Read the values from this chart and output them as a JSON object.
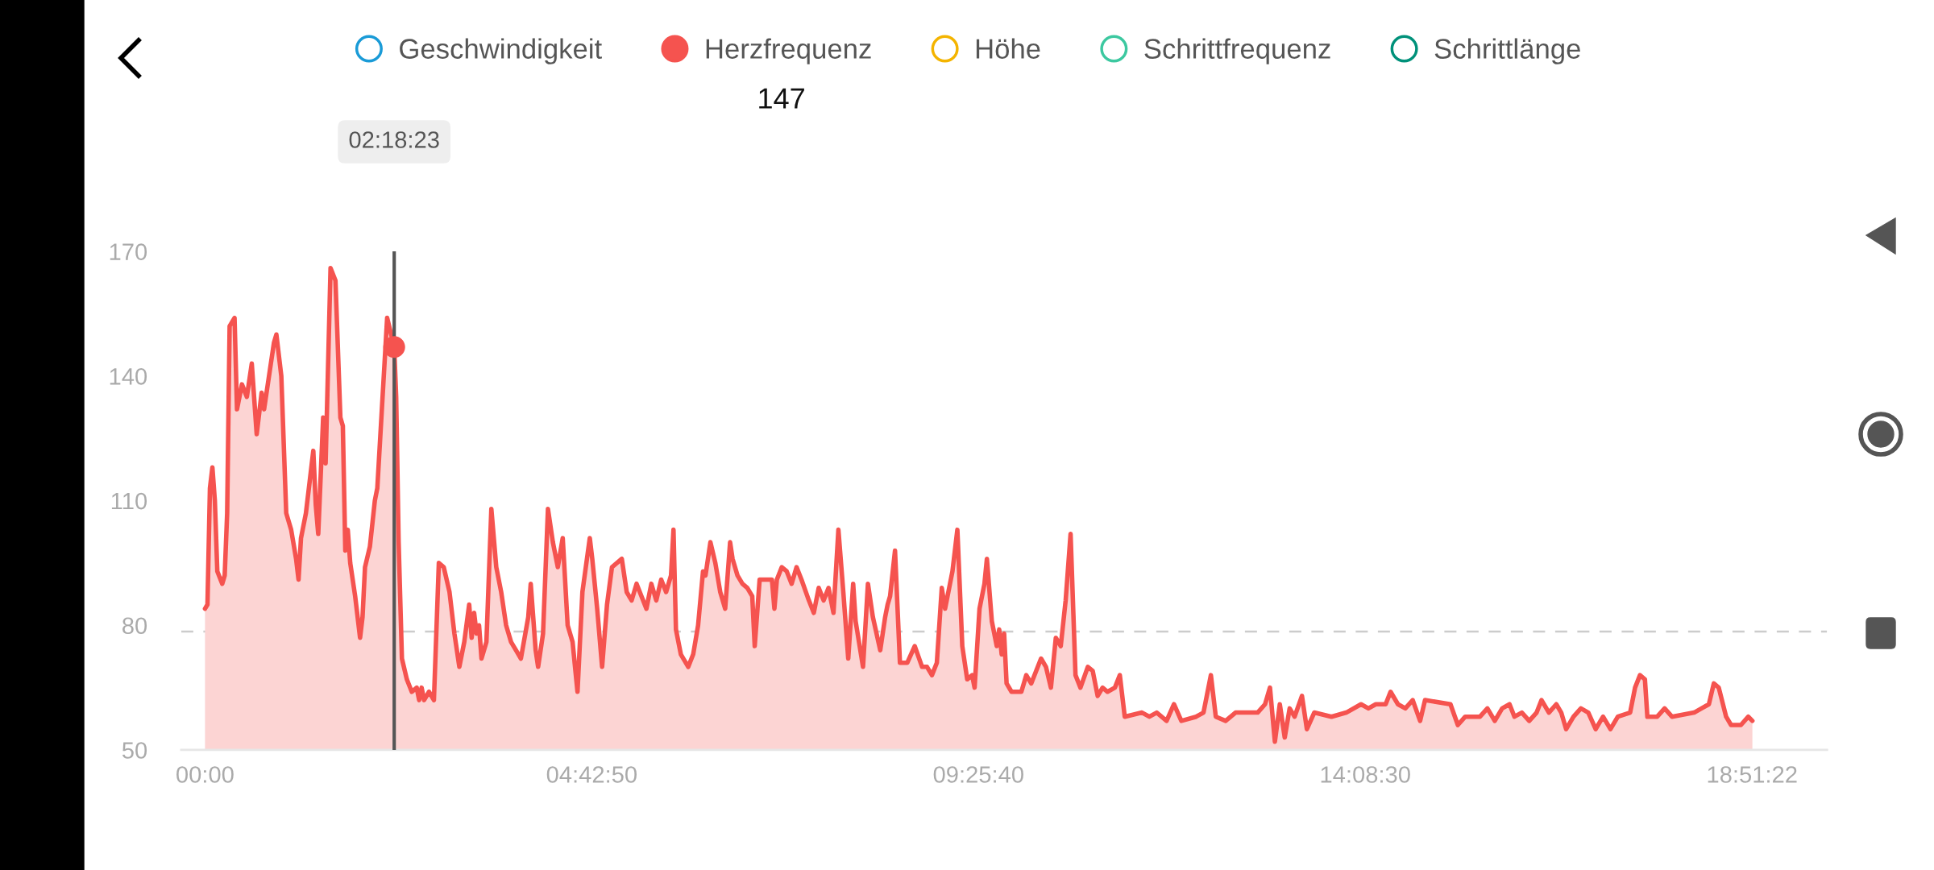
{
  "chart_data": {
    "type": "area",
    "series": [
      {
        "name": "Geschwindigkeit",
        "color": "#1a9bd7"
      },
      {
        "name": "Herzfrequenz",
        "color": "#f5534f",
        "x": [
          0.0,
          0.03,
          0.06,
          0.09,
          0.12,
          0.15,
          0.21,
          0.24,
          0.27,
          0.3,
          0.36,
          0.39,
          0.45,
          0.51,
          0.57,
          0.63,
          0.69,
          0.72,
          0.78,
          0.84,
          0.87,
          0.93,
          0.99,
          1.05,
          1.11,
          1.14,
          1.17,
          1.23,
          1.32,
          1.35,
          1.38,
          1.44,
          1.47,
          1.53,
          1.59,
          1.65,
          1.68,
          1.71,
          1.74,
          1.77,
          1.83,
          1.89,
          1.92,
          1.95,
          2.01,
          2.07,
          2.1,
          2.22,
          2.306,
          2.33,
          2.36,
          2.4,
          2.46,
          2.52,
          2.58,
          2.61,
          2.64,
          2.67,
          2.73,
          2.79,
          2.85,
          2.91,
          2.98,
          3.04,
          3.1,
          3.16,
          3.22,
          3.25,
          3.28,
          3.31,
          3.34,
          3.37,
          3.43,
          3.49,
          3.55,
          3.61,
          3.67,
          3.73,
          3.79,
          3.85,
          3.94,
          3.97,
          4.03,
          4.06,
          4.12,
          4.18,
          4.24,
          4.3,
          4.36,
          4.42,
          4.48,
          4.54,
          4.6,
          4.69,
          4.72,
          4.78,
          4.84,
          4.9,
          4.96,
          5.02,
          5.08,
          5.14,
          5.2,
          5.26,
          5.32,
          5.38,
          5.44,
          5.5,
          5.56,
          5.62,
          5.68,
          5.71,
          5.74,
          5.8,
          5.89,
          5.95,
          6.01,
          6.07,
          6.1,
          6.16,
          6.22,
          6.28,
          6.34,
          6.4,
          6.43,
          6.49,
          6.55,
          6.61,
          6.67,
          6.7,
          6.76,
          6.91,
          6.94,
          6.97,
          7.03,
          7.09,
          7.15,
          7.21,
          7.27,
          7.36,
          7.42,
          7.48,
          7.54,
          7.6,
          7.66,
          7.72,
          7.78,
          7.84,
          7.9,
          7.93,
          8.02,
          8.08,
          8.14,
          8.23,
          8.29,
          8.32,
          8.35,
          8.41,
          8.47,
          8.56,
          8.65,
          8.74,
          8.8,
          8.86,
          8.92,
          8.98,
          9.02,
          9.08,
          9.11,
          9.17,
          9.23,
          9.29,
          9.35,
          9.38,
          9.44,
          9.5,
          9.53,
          9.59,
          9.65,
          9.68,
          9.71,
          9.74,
          9.77,
          9.83,
          9.95,
          10.01,
          10.07,
          10.13,
          10.19,
          10.25,
          10.31,
          10.37,
          10.43,
          10.49,
          10.55,
          10.61,
          10.67,
          10.76,
          10.82,
          10.88,
          10.94,
          11.0,
          11.09,
          11.15,
          11.21,
          11.42,
          11.51,
          11.6,
          11.72,
          11.81,
          11.9,
          12.08,
          12.17,
          12.26,
          12.32,
          12.44,
          12.56,
          12.83,
          12.92,
          12.98,
          13.04,
          13.1,
          13.16,
          13.22,
          13.28,
          13.37,
          13.43,
          13.52,
          13.73,
          13.91,
          14.09,
          14.18,
          14.27,
          14.39,
          14.45,
          14.54,
          14.63,
          14.72,
          14.81,
          14.87,
          15.18,
          15.27,
          15.36,
          15.54,
          15.63,
          15.72,
          15.81,
          15.9,
          15.96,
          16.05,
          16.14,
          16.23,
          16.29,
          16.38,
          16.47,
          16.53,
          16.59,
          16.68,
          16.77,
          16.86,
          16.95,
          17.04,
          17.13,
          17.22,
          17.37,
          17.43,
          17.49,
          17.55,
          17.58,
          17.7,
          17.79,
          17.88,
          18.15,
          18.24,
          18.33,
          18.39,
          18.45,
          18.54,
          18.6,
          18.72,
          18.81,
          18.86
        ],
        "values": [
          84,
          85,
          113,
          118,
          110,
          93,
          90,
          92,
          107,
          152,
          154,
          132,
          138,
          135,
          143,
          126,
          136,
          132,
          140,
          148,
          150,
          140,
          107,
          103,
          96,
          91,
          101,
          107,
          122,
          109,
          102,
          130,
          119,
          166,
          163,
          130,
          128,
          98,
          103,
          95,
          87,
          77,
          82,
          94,
          99,
          110,
          113,
          154,
          147,
          135,
          100,
          72,
          67,
          64,
          65,
          62,
          65,
          62,
          64,
          62,
          95,
          94,
          88,
          78,
          70,
          76,
          85,
          77,
          83,
          78,
          80,
          72,
          76,
          108,
          94,
          88,
          80,
          76,
          74,
          72,
          82,
          90,
          74,
          70,
          78,
          108,
          100,
          94,
          101,
          80,
          76,
          64,
          88,
          101,
          96,
          84,
          70,
          85,
          94,
          95,
          96,
          88,
          86,
          90,
          87,
          84,
          90,
          86,
          91,
          88,
          92,
          103,
          79,
          73,
          70,
          73,
          80,
          93,
          92,
          100,
          95,
          88,
          84,
          100,
          96,
          92,
          90,
          89,
          87,
          75,
          91,
          91,
          84,
          91,
          94,
          93,
          90,
          94,
          91,
          86,
          83,
          89,
          86,
          89,
          83,
          103,
          88,
          72,
          90,
          81,
          70,
          90,
          82,
          74,
          82,
          85,
          87,
          98,
          71,
          71,
          75,
          70,
          70,
          68,
          71,
          89,
          84,
          90,
          93,
          103,
          75,
          67,
          68,
          65,
          84,
          90,
          96,
          81,
          75,
          79,
          73,
          78,
          66,
          64,
          64,
          68,
          66,
          69,
          72,
          70,
          65,
          77,
          75,
          86,
          102,
          68,
          65,
          70,
          69,
          63,
          65,
          64,
          65,
          68,
          58,
          59,
          58,
          59,
          57,
          61,
          57,
          58,
          59,
          68,
          58,
          57,
          59,
          59,
          61,
          65,
          52,
          61,
          53,
          60,
          58,
          63,
          55,
          59,
          58,
          59,
          61,
          60,
          61,
          61,
          64,
          61,
          60,
          62,
          57,
          62,
          61,
          56,
          58,
          58,
          60,
          57,
          60,
          61,
          58,
          59,
          57,
          59,
          62,
          59,
          61,
          59,
          55,
          58,
          60,
          59,
          55,
          58,
          55,
          58,
          59,
          65,
          68,
          67,
          58,
          58,
          60,
          58,
          59,
          60,
          61,
          66,
          65,
          58,
          56,
          56,
          58,
          57
        ]
      },
      {
        "name": "Höhe",
        "color": "#f4b400"
      },
      {
        "name": "Schrittfrequenz",
        "color": "#3cc8a0"
      },
      {
        "name": "Schrittlänge",
        "color": "#00917a"
      },
      {
        "type": "scatter",
        "color": "#f5534f",
        "marker": "circle",
        "x": [
          2.306
        ],
        "values": [
          147
        ]
      }
    ],
    "xlim": [
      -0.29,
      19.77
    ],
    "ylim": [
      50,
      170
    ],
    "xticks": [
      {
        "value": 0,
        "label": "00:00"
      },
      {
        "value": 4.7139,
        "label": "04:42:50"
      },
      {
        "value": 9.4278,
        "label": "09:25:40"
      },
      {
        "value": 14.1417,
        "label": "14:08:30"
      },
      {
        "value": 18.8561,
        "label": "18:51:22"
      }
    ],
    "yticks": [
      50,
      80,
      110,
      140,
      170
    ],
    "ref_lines": [
      {
        "axis": "y",
        "value": 78.5,
        "color": "#cccccc",
        "line_style": "dashed"
      },
      {
        "axis": "x",
        "value": 2.306,
        "label": "02:18:23",
        "color": "#555555",
        "line_style": "solid"
      }
    ],
    "annotations": [
      "147"
    ],
    "legend": "top",
    "line_style": "solid"
  }
}
